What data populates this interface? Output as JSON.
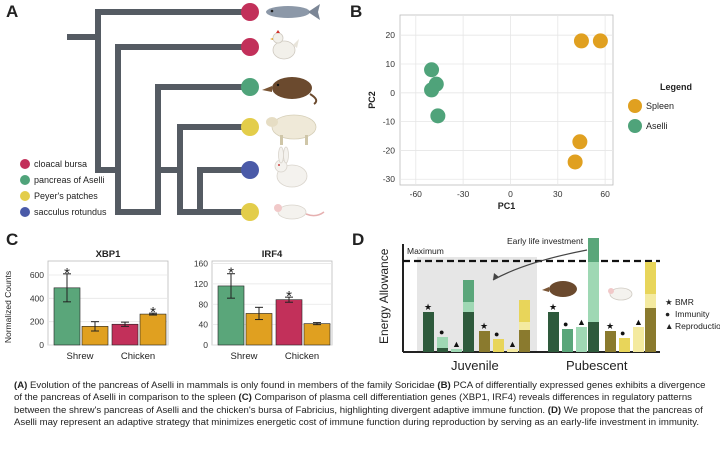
{
  "panels": {
    "a": {
      "letter": "A",
      "legend": [
        {
          "label": "cloacal bursa",
          "color": "#c2305a"
        },
        {
          "label": "pancreas of Aselli",
          "color": "#4fa37a"
        },
        {
          "label": "Peyer's patches",
          "color": "#e3cd4a"
        },
        {
          "label": "sacculus rotundus",
          "color": "#4a5aa8"
        }
      ],
      "tips": [
        {
          "animal": "fish",
          "color": "#c2305a"
        },
        {
          "animal": "chicken",
          "color": "#c2305a"
        },
        {
          "animal": "shrew",
          "color": "#4fa37a"
        },
        {
          "animal": "sheep",
          "color": "#e3cd4a"
        },
        {
          "animal": "rabbit",
          "color": "#4a5aa8"
        },
        {
          "animal": "mouse",
          "color": "#e3cd4a"
        }
      ]
    },
    "b": {
      "letter": "B"
    },
    "c": {
      "letter": "C"
    },
    "d": {
      "letter": "D",
      "ylabel": "Energy Allowance",
      "maximum_label": "Maximum",
      "annotation": "Early life investment",
      "groups": [
        "Juvenile",
        "Pubescent"
      ],
      "legend": [
        {
          "symbol": "★",
          "label": "BMR"
        },
        {
          "symbol": "●",
          "label": "Immunity"
        },
        {
          "symbol": "▲",
          "label": "Reproduction"
        }
      ],
      "colors": {
        "bmr_dark": "#2e5a3c",
        "bmr_olive": "#8a7a2e",
        "immunity_green": "#5aa67a",
        "light_green": "#9fd8b4",
        "yellow": "#e8d55a",
        "light_yellow": "#f4eaa0"
      }
    }
  },
  "chart_data": [
    {
      "type": "scatter",
      "panel": "B",
      "xlabel": "PC1",
      "ylabel": "PC2",
      "xlim": [
        -70,
        65
      ],
      "ylim": [
        -32,
        27
      ],
      "xticks": [
        -60,
        -30,
        0,
        30,
        60
      ],
      "yticks": [
        -30,
        -20,
        -10,
        0,
        10,
        20
      ],
      "grid": true,
      "legend_title": "Legend",
      "legend_position": "right",
      "series": [
        {
          "name": "Spleen",
          "color": "#e0a020",
          "points": [
            [
              45,
              18
            ],
            [
              57,
              18
            ],
            [
              44,
              -17
            ],
            [
              41,
              -24
            ]
          ]
        },
        {
          "name": "Aselli",
          "color": "#4fa37a",
          "points": [
            [
              -50,
              8
            ],
            [
              -47,
              3
            ],
            [
              -50,
              1
            ],
            [
              -46,
              -8
            ]
          ]
        }
      ]
    },
    {
      "type": "bar",
      "panel": "C",
      "title": "XBP1",
      "ylabel": "Normalized Counts",
      "groups": [
        "Shrew",
        "Chicken"
      ],
      "ylim": [
        0,
        720
      ],
      "yticks": [
        0,
        200,
        400,
        600
      ],
      "bars": [
        {
          "group": "Shrew",
          "value": 490,
          "err": 120,
          "color": "#5aa67a",
          "star": true
        },
        {
          "group": "Shrew",
          "value": 160,
          "err": 40,
          "color": "#e0a020",
          "star": false
        },
        {
          "group": "Chicken",
          "value": 178,
          "err": 18,
          "color": "#c2305a",
          "star": false
        },
        {
          "group": "Chicken",
          "value": 265,
          "err": 8,
          "color": "#e0a020",
          "star": true
        }
      ]
    },
    {
      "type": "bar",
      "panel": "C",
      "title": "IRF4",
      "groups": [
        "Shrew",
        "Chicken"
      ],
      "ylim": [
        0,
        165
      ],
      "yticks": [
        0,
        40,
        80,
        120,
        160
      ],
      "bars": [
        {
          "group": "Shrew",
          "value": 116,
          "err": 24,
          "color": "#5aa67a",
          "star": true
        },
        {
          "group": "Shrew",
          "value": 62,
          "err": 12,
          "color": "#e0a020",
          "star": false
        },
        {
          "group": "Chicken",
          "value": 89,
          "err": 5,
          "color": "#c2305a",
          "star": true
        },
        {
          "group": "Chicken",
          "value": 42,
          "err": 2,
          "color": "#e0a020",
          "star": false
        }
      ]
    }
  ],
  "caption": {
    "a_tag": "(A)",
    "a_text": " Evolution of the pancreas of Aselli in mammals is only found in members of the family Soricidae ",
    "b_tag": "(B)",
    "b_text": " PCA of differentially expressed genes exhibits a divergence of the pancreas of Aselli in comparison to the spleen ",
    "c_tag": "(C)",
    "c_text": " Comparison of plasma cell differentiation genes (XBP1, IRF4) reveals differences in regulatory patterns between the shrew's pancreas of Aselli and the chicken's bursa of Fabricius, highlighting divergent adaptive immune function. ",
    "d_tag": "(D)",
    "d_text": " We propose that the pancreas of Aselli may represent an adaptive strategy that minimizes energetic cost of immune function during reproduction by serving as an early-life investment in immunity."
  }
}
